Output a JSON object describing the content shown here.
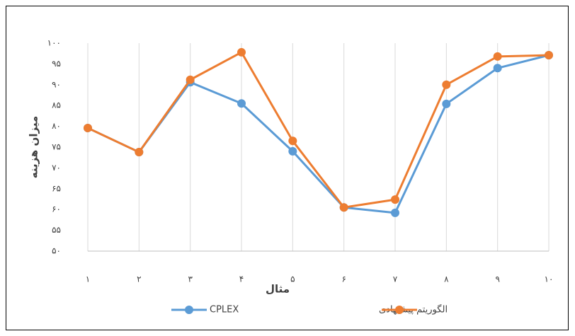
{
  "chart_data": {
    "type": "line",
    "x_label": "مثال",
    "y_label": "میزان هزینه",
    "categories": [
      "۱",
      "۲",
      "۳",
      "۴",
      "۵",
      "۶",
      "۷",
      "۸",
      "۹",
      "۱۰"
    ],
    "series": [
      {
        "name": "CPLEX",
        "color": "#5b9bd5",
        "values": [
          79.6,
          73.8,
          90.6,
          85.5,
          74,
          60.5,
          59.2,
          85.4,
          94,
          97.1
        ]
      },
      {
        "name": "الگوریتم پیشنهادی",
        "color": "#ed7d31",
        "values": [
          79.6,
          73.8,
          91.2,
          97.8,
          76.5,
          60.5,
          62.4,
          90,
          96.8,
          97.1
        ]
      }
    ],
    "ylim": [
      50,
      100
    ],
    "yticks": [
      {
        "value": 50,
        "label": "۵۰"
      },
      {
        "value": 55,
        "label": "۵۵"
      },
      {
        "value": 60,
        "label": "۶۰"
      },
      {
        "value": 65,
        "label": "۶۵"
      },
      {
        "value": 70,
        "label": "۷۰"
      },
      {
        "value": 75,
        "label": "۷۵"
      },
      {
        "value": 80,
        "label": "۸۰"
      },
      {
        "value": 85,
        "label": "۸۵"
      },
      {
        "value": 90,
        "label": "۹۰"
      },
      {
        "value": 95,
        "label": "۹۵"
      },
      {
        "value": 100,
        "label": "۱۰۰"
      }
    ],
    "grid": "x",
    "legend": "bottom"
  }
}
